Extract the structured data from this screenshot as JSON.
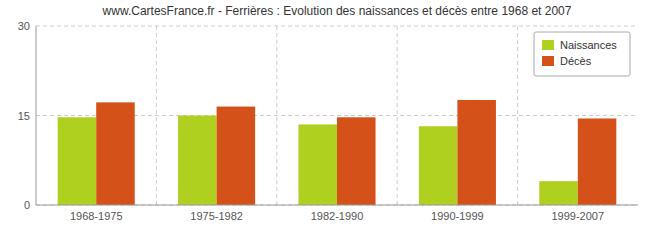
{
  "chart_data": {
    "type": "bar",
    "title": "www.CartesFrance.fr - Ferrières : Evolution des naissances et décès entre 1968 et 2007",
    "categories": [
      "1968-1975",
      "1975-1982",
      "1982-1990",
      "1990-1999",
      "1999-2007"
    ],
    "series": [
      {
        "name": "Naissances",
        "color": "#b0d020",
        "values": [
          14.7,
          15.0,
          13.5,
          13.2,
          4.0
        ]
      },
      {
        "name": "Décès",
        "color": "#d4521a",
        "values": [
          17.2,
          16.5,
          14.7,
          17.6,
          14.5
        ]
      }
    ],
    "ylim": [
      0,
      30
    ],
    "yticks": [
      0,
      15,
      30
    ],
    "grid": true,
    "legend": "upper right"
  }
}
